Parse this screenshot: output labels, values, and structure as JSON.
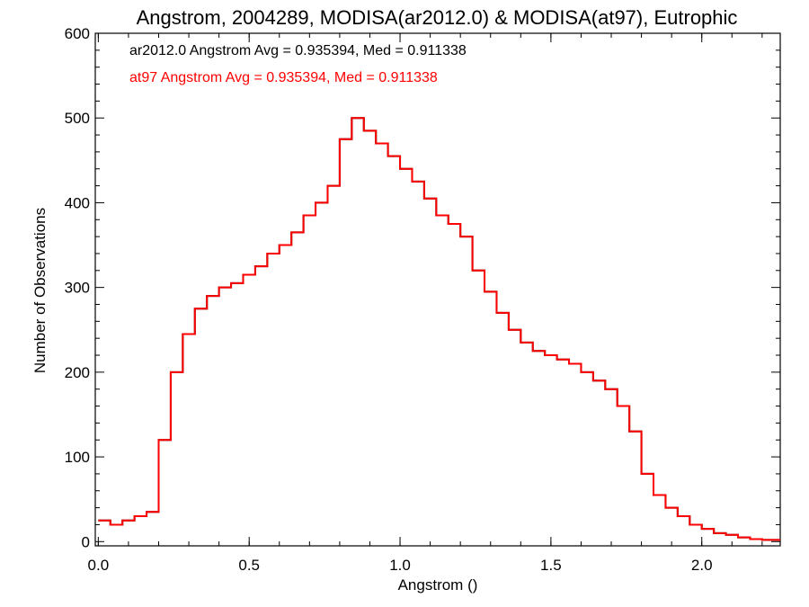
{
  "chart_data": {
    "type": "line",
    "title": "Angstrom, 2004289, MODISA(ar2012.0) & MODISA(at97), Eutrophic",
    "xlabel": "Angstrom ()",
    "ylabel": "Number of Observations",
    "xlim": [
      -0.01,
      2.26
    ],
    "ylim": [
      -5,
      600
    ],
    "grid": false,
    "x_ticks": [
      0.0,
      0.5,
      1.0,
      1.5,
      2.0
    ],
    "x_tick_labels": [
      "0.0",
      "0.5",
      "1.0",
      "1.5",
      "2.0"
    ],
    "y_ticks": [
      0,
      100,
      200,
      300,
      400,
      500,
      600
    ],
    "y_tick_labels": [
      "0",
      "100",
      "200",
      "300",
      "400",
      "500",
      "600"
    ],
    "annotations": [
      {
        "text": "ar2012.0 Angstrom Avg = 0.935394, Med = 0.911338",
        "color": "#000000"
      },
      {
        "text": "at97 Angstrom Avg = 0.935394, Med = 0.911338",
        "color": "#ff0000"
      }
    ],
    "series": [
      {
        "color": "#000000",
        "x": [
          0.0,
          0.04,
          0.08,
          0.12,
          0.16,
          0.2,
          0.24,
          0.28,
          0.32,
          0.36,
          0.4,
          0.44,
          0.48,
          0.52,
          0.56,
          0.6,
          0.64,
          0.68,
          0.72,
          0.76,
          0.8,
          0.84,
          0.88,
          0.92,
          0.96,
          1.0,
          1.04,
          1.08,
          1.12,
          1.16,
          1.2,
          1.24,
          1.28,
          1.32,
          1.36,
          1.4,
          1.44,
          1.48,
          1.52,
          1.56,
          1.6,
          1.64,
          1.68,
          1.72,
          1.76,
          1.8,
          1.84,
          1.88,
          1.92,
          1.96,
          2.0,
          2.04,
          2.08,
          2.12,
          2.16,
          2.2,
          2.26
        ],
        "values": [
          25,
          20,
          25,
          30,
          35,
          120,
          200,
          245,
          275,
          290,
          300,
          305,
          315,
          325,
          340,
          350,
          365,
          385,
          400,
          420,
          475,
          500,
          485,
          470,
          455,
          440,
          425,
          405,
          385,
          375,
          360,
          320,
          295,
          270,
          250,
          235,
          225,
          220,
          215,
          210,
          200,
          190,
          180,
          160,
          130,
          80,
          55,
          40,
          30,
          20,
          15,
          10,
          8,
          5,
          3,
          2,
          2
        ]
      },
      {
        "color": "#ff0000",
        "x": [
          0.0,
          0.04,
          0.08,
          0.12,
          0.16,
          0.2,
          0.24,
          0.28,
          0.32,
          0.36,
          0.4,
          0.44,
          0.48,
          0.52,
          0.56,
          0.6,
          0.64,
          0.68,
          0.72,
          0.76,
          0.8,
          0.84,
          0.88,
          0.92,
          0.96,
          1.0,
          1.04,
          1.08,
          1.12,
          1.16,
          1.2,
          1.24,
          1.28,
          1.32,
          1.36,
          1.4,
          1.44,
          1.48,
          1.52,
          1.56,
          1.6,
          1.64,
          1.68,
          1.72,
          1.76,
          1.8,
          1.84,
          1.88,
          1.92,
          1.96,
          2.0,
          2.04,
          2.08,
          2.12,
          2.16,
          2.2,
          2.26
        ],
        "values": [
          25,
          20,
          25,
          30,
          35,
          120,
          200,
          245,
          275,
          290,
          300,
          305,
          315,
          325,
          340,
          350,
          365,
          385,
          400,
          420,
          475,
          500,
          485,
          470,
          455,
          440,
          425,
          405,
          385,
          375,
          360,
          320,
          295,
          270,
          250,
          235,
          225,
          220,
          215,
          210,
          200,
          190,
          180,
          160,
          130,
          80,
          55,
          40,
          30,
          20,
          15,
          10,
          8,
          5,
          3,
          2,
          2
        ]
      }
    ]
  }
}
